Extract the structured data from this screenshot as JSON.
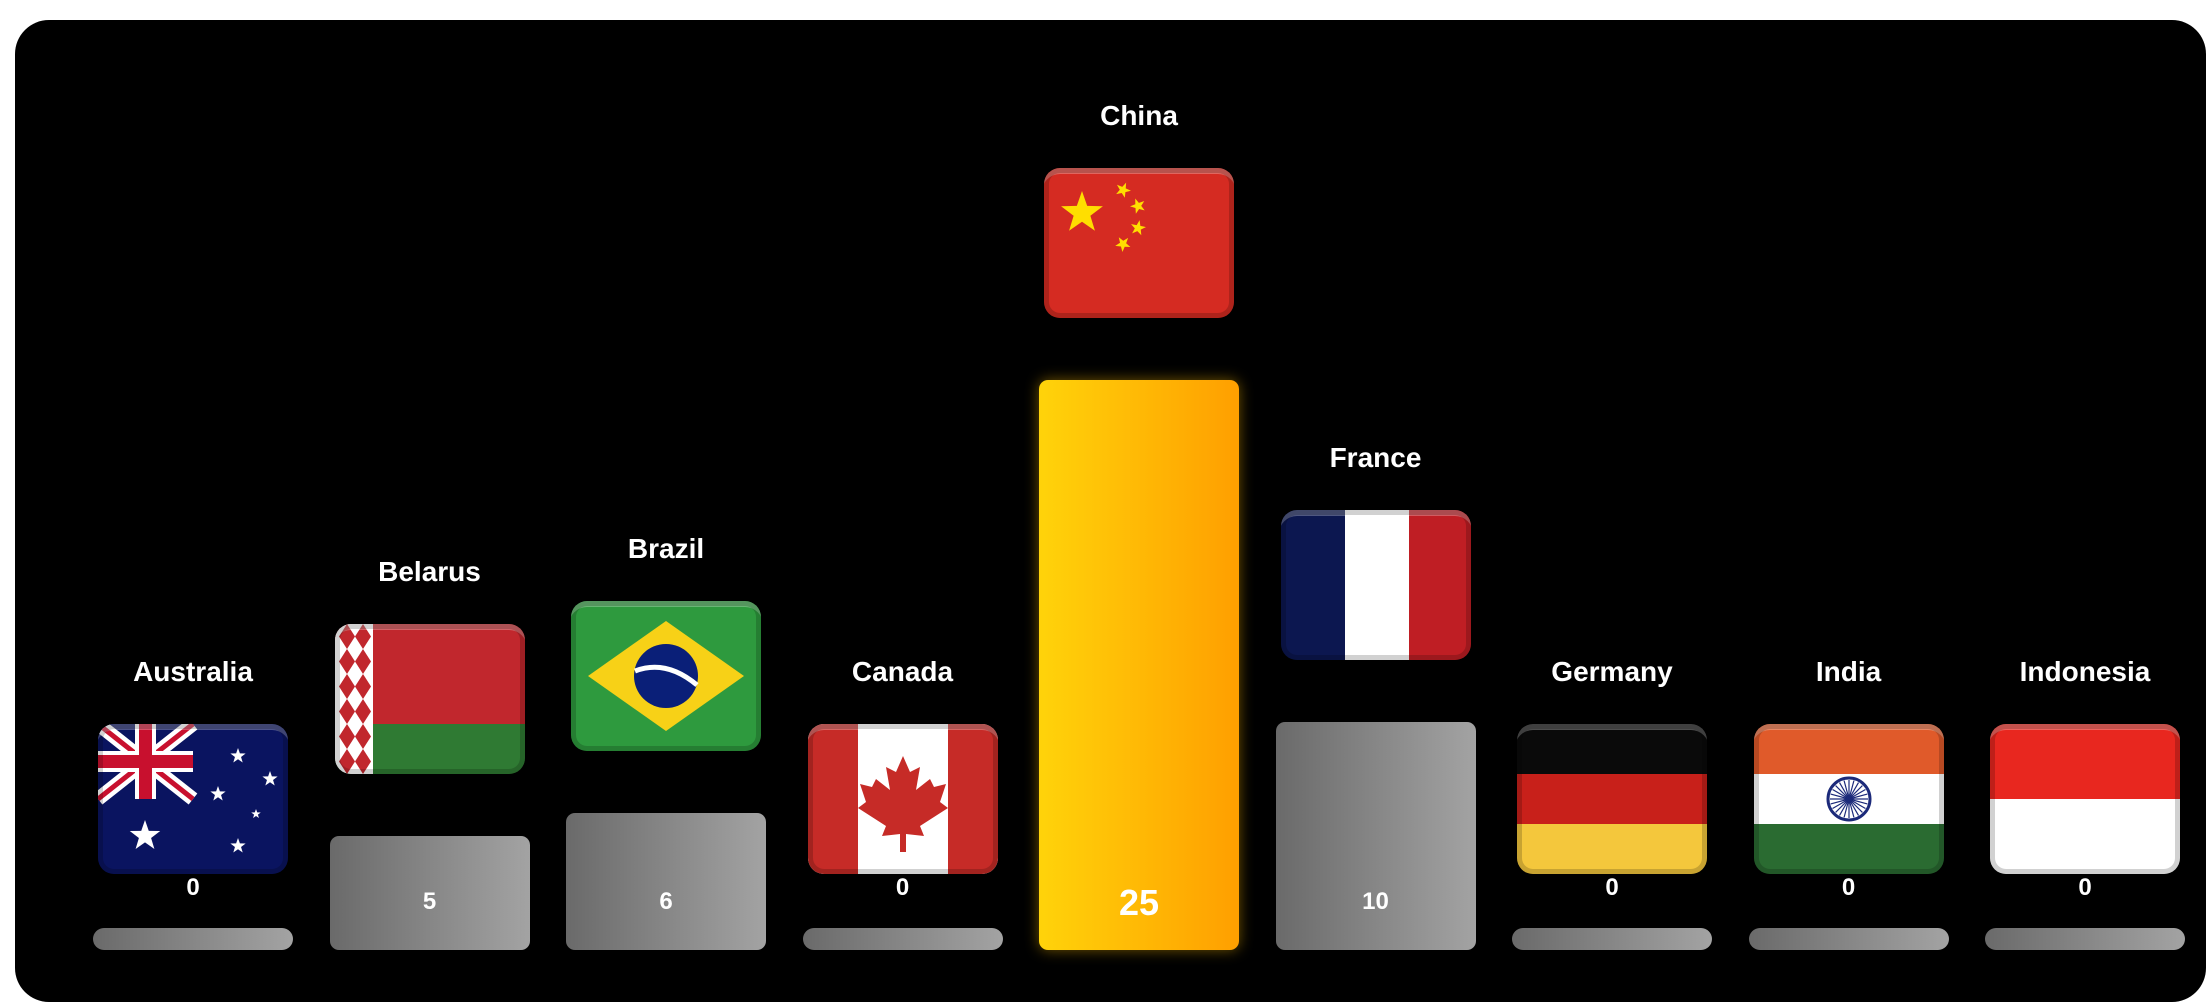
{
  "chart_data": {
    "type": "bar",
    "categories": [
      "Australia",
      "Belarus",
      "Brazil",
      "Canada",
      "China",
      "France",
      "Germany",
      "India",
      "Indonesia"
    ],
    "values": [
      0,
      5,
      6,
      0,
      25,
      10,
      0,
      0,
      0
    ],
    "value_labels": [
      "0",
      "5",
      "6",
      "0",
      "25",
      "10",
      "0",
      "0",
      "0"
    ],
    "title": "",
    "xlabel": "",
    "ylabel": "",
    "ylim": [
      0,
      25
    ],
    "grid": false,
    "legend": "none",
    "highlight": "China",
    "colors": {
      "background": "#000000",
      "bar_gradient": [
        "#6a6a6a",
        "#a3a3a3"
      ],
      "highlight_gradient": [
        "#ffd30a",
        "#ff9f00"
      ],
      "text": "#ffffff"
    },
    "flag_icons": [
      "australia-flag-icon",
      "belarus-flag-icon",
      "brazil-flag-icon",
      "canada-flag-icon",
      "china-flag-icon",
      "france-flag-icon",
      "germany-flag-icon",
      "india-flag-icon",
      "indonesia-flag-icon"
    ]
  }
}
